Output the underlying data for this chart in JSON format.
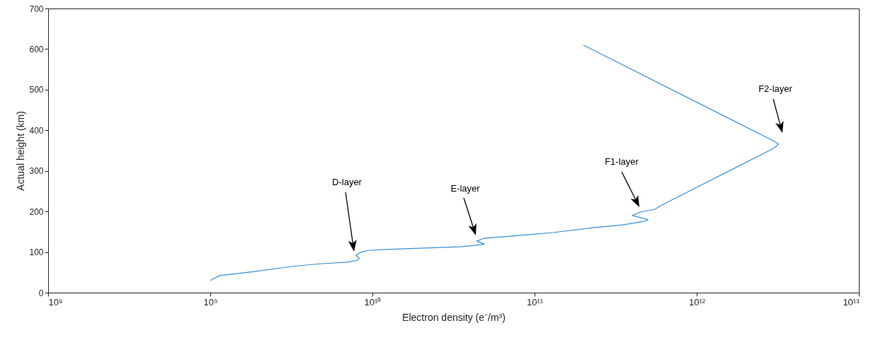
{
  "chart_data": {
    "type": "line",
    "xlabel": "Electron density (e⁻/m³)",
    "ylabel": "Actual height (km)",
    "x": [
      1000000000.0,
      1140000000.0,
      1880000000.0,
      3100000000.0,
      4700000000.0,
      7000000000.0,
      8100000000.0,
      8300000000.0,
      7900000000.0,
      8400000000.0,
      9400000000.0,
      11500000000.0,
      21000000000.0,
      35000000000.0,
      44000000000.0,
      49000000000.0,
      44000000000.0,
      49000000000.0,
      71000000000.0,
      130000000000.0,
      230000000000.0,
      350000000000.0,
      480000000000.0,
      500000000000.0,
      400000000000.0,
      450000000000.0,
      550000000000.0,
      610000000000.0,
      3000000000000.0,
      3200000000000.0,
      3000000000000.0,
      200000000000.0
    ],
    "series": [
      {
        "color": "#3a8fd6",
        "values": [
          30,
          42,
          52,
          64,
          71,
          75,
          80,
          85,
          92,
          99,
          104,
          106,
          110,
          113,
          117,
          120,
          127,
          134,
          139,
          148,
          160,
          167,
          176,
          180,
          190,
          199,
          205,
          216,
          356,
          366,
          373,
          610
        ]
      }
    ],
    "log": "x",
    "grid": false,
    "xlim": [
      100000000.0,
      10000000000000.0
    ],
    "xticks": [
      {
        "value": 100000000.0,
        "label": "10⁸"
      },
      {
        "value": 1000000000.0,
        "label": "10⁹"
      },
      {
        "value": 10000000000.0,
        "label": "10¹⁰"
      },
      {
        "value": 100000000000.0,
        "label": "10¹¹"
      },
      {
        "value": 1000000000000.0,
        "label": "10¹²"
      },
      {
        "value": 10000000000000.0,
        "label": "10¹³"
      }
    ],
    "ylim": [
      0,
      700
    ],
    "yticks": [
      0,
      100,
      200,
      300,
      400,
      500,
      600,
      700
    ],
    "annotations": [
      "D-layer",
      "E-layer",
      "F1-layer",
      "F2-layer"
    ]
  }
}
